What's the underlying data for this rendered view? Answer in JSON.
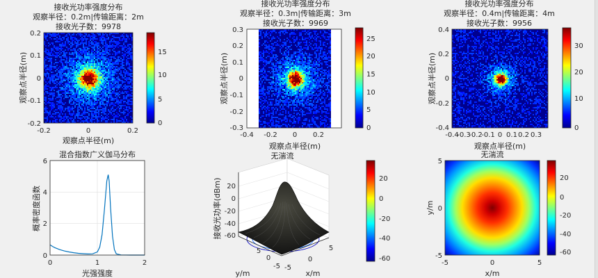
{
  "figure": {
    "background": "#f0f0f0"
  },
  "chart_data": [
    {
      "type": "heatmap",
      "title": [
        "接收光功率强度分布",
        "观察半径：0.2m|传输距离：2m",
        "接收光子数：9978"
      ],
      "xlabel": "观察点半径(m)",
      "ylabel": "观察点半径(m)",
      "xlim": [
        -0.2,
        0.2
      ],
      "ylim": [
        -0.2,
        0.2
      ],
      "xticks": [
        "-0.2",
        "0",
        "0.2"
      ],
      "yticks": [
        "0.2",
        "0.1",
        "0",
        "-0.1",
        "-0.2"
      ],
      "colorbar": {
        "range": [
          0,
          19
        ],
        "ticks": [
          "15",
          "10",
          "5",
          "0"
        ]
      },
      "data_extent": {
        "x": [
          -0.2,
          0.2
        ],
        "y": [
          -0.2,
          0.2
        ]
      },
      "spot_sigma_rel": 0.07,
      "noise_density": 0.55,
      "seed": 11
    },
    {
      "type": "heatmap",
      "title": [
        "接收光功率强度分布",
        "观察半径：0.3m|传输距离：3m",
        "接收光子数：9969"
      ],
      "xlabel": "观察点半径(m)",
      "ylabel": "观察点半径(m)",
      "xlim": [
        -0.4,
        0.4
      ],
      "ylim": [
        -0.3,
        0.3
      ],
      "xticks": [
        "-0.4",
        "-0.2",
        "0",
        "0.2"
      ],
      "yticks": [
        "0.3",
        "0.2",
        "0.1",
        "0",
        "-0.1",
        "-0.2",
        "-0.3"
      ],
      "colorbar": {
        "range": [
          0,
          28
        ],
        "ticks": [
          "25",
          "20",
          "15",
          "10",
          "5",
          "0"
        ]
      },
      "data_extent": {
        "x": [
          -0.3,
          0.3
        ],
        "y": [
          -0.3,
          0.3
        ]
      },
      "spot_sigma_rel": 0.055,
      "noise_density": 0.45,
      "seed": 23
    },
    {
      "type": "heatmap",
      "title": [
        "接收光功率强度分布",
        "观察半径：0.4m|传输距离：4m",
        "接收光子数：9956"
      ],
      "xlabel": "观察点半径(m)",
      "ylabel": "观察点半径(m)",
      "xlim": [
        -0.4,
        0.4
      ],
      "ylim": [
        -0.4,
        0.4
      ],
      "xticks": [
        "-0.4",
        "-0.3",
        "-0.2",
        "-0.1",
        "0",
        "0.1",
        "0.2",
        "0.3"
      ],
      "yticks": [
        "0.4",
        "0.2",
        "0",
        "-0.2",
        "-0.4"
      ],
      "colorbar": {
        "range": [
          0,
          38
        ],
        "ticks": [
          "30",
          "20",
          "10",
          "0"
        ]
      },
      "data_extent": {
        "x": [
          -0.4,
          0.4
        ],
        "y": [
          -0.4,
          0.4
        ]
      },
      "spot_sigma_rel": 0.04,
      "noise_density": 0.4,
      "seed": 37
    },
    {
      "type": "line",
      "title": "混合指数广义伽马分布",
      "xlabel": "光强强度",
      "ylabel": "概率密度函数",
      "xlim": [
        0,
        2
      ],
      "ylim": [
        0,
        6
      ],
      "xticks": [
        "0",
        "1",
        "2"
      ],
      "yticks": [
        "6",
        "4",
        "2",
        "0"
      ],
      "grid": true,
      "series": [
        {
          "color": "#0072bd",
          "x": [
            0,
            0.05,
            0.1,
            0.2,
            0.3,
            0.4,
            0.5,
            0.6,
            0.7,
            0.8,
            0.9,
            1.0,
            1.05,
            1.1,
            1.15,
            1.2,
            1.23,
            1.25,
            1.28,
            1.32,
            1.36,
            1.4,
            1.5,
            1.7,
            2.0
          ],
          "y": [
            0.65,
            0.55,
            0.47,
            0.35,
            0.26,
            0.2,
            0.15,
            0.11,
            0.09,
            0.07,
            0.08,
            0.2,
            0.5,
            1.3,
            2.9,
            4.7,
            5.1,
            4.7,
            3.0,
            1.2,
            0.35,
            0.08,
            0.01,
            0,
            0
          ]
        }
      ]
    },
    {
      "type": "surface",
      "title": "无湍流",
      "xlabel": "x/m",
      "ylabel": "y/m",
      "zlabel": "接收光功率(dBm)",
      "zticks": [
        "20",
        "0",
        "-20",
        "-40",
        "-60"
      ],
      "zlim": [
        -65,
        35
      ],
      "xticks": [
        "-5",
        "0",
        "5"
      ],
      "yticks": [
        "5",
        "0",
        "-5"
      ],
      "colorbar": {
        "range": [
          -65,
          36
        ],
        "ticks": [
          "20",
          "0",
          "-20",
          "-40",
          "-60"
        ]
      }
    },
    {
      "type": "heatmap",
      "title": "无湍流",
      "xlabel": "x/m",
      "ylabel": "y/m",
      "xlim": [
        -5,
        5
      ],
      "ylim": [
        -5,
        5
      ],
      "xticks": [
        "-5",
        "0",
        "5"
      ],
      "yticks": [
        "5",
        "0",
        "-5"
      ],
      "colorbar": {
        "range": [
          -65,
          36
        ],
        "ticks": [
          "20",
          "0",
          "-20",
          "-40",
          "-60"
        ]
      }
    }
  ]
}
